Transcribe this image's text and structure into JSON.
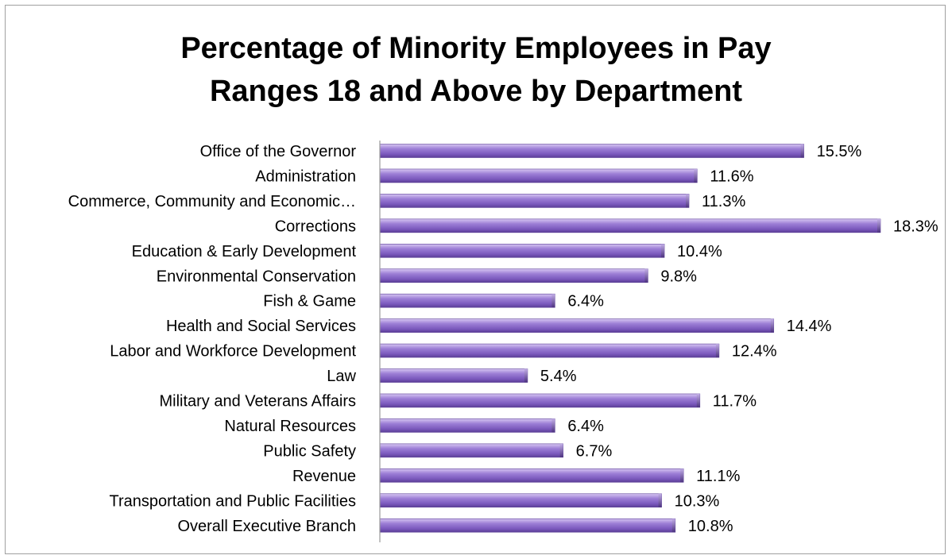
{
  "chart_data": {
    "type": "bar",
    "orientation": "horizontal",
    "title_lines": [
      "Percentage of Minority Employees in Pay",
      "Ranges 18 and Above by Department"
    ],
    "categories": [
      "Office of the Governor",
      "Administration",
      "Commerce, Community and Economic…",
      "Corrections",
      "Education & Early Development",
      "Environmental Conservation",
      "Fish & Game",
      "Health and Social Services",
      "Labor and Workforce Development",
      "Law",
      "Military and Veterans Affairs",
      "Natural Resources",
      "Public Safety",
      "Revenue",
      "Transportation and Public Facilities",
      "Overall Executive Branch"
    ],
    "values": [
      15.5,
      11.6,
      11.3,
      18.3,
      10.4,
      9.8,
      6.4,
      14.4,
      12.4,
      5.4,
      11.7,
      6.4,
      6.7,
      11.1,
      10.3,
      10.8
    ],
    "value_labels": [
      "15.5%",
      "11.6%",
      "11.3%",
      "18.3%",
      "10.4%",
      "9.8%",
      "6.4%",
      "14.4%",
      "12.4%",
      "5.4%",
      "11.7%",
      "6.4%",
      "6.7%",
      "11.1%",
      "10.3%",
      "10.8%"
    ],
    "unit": "%",
    "xlim": [
      0,
      18.3
    ],
    "grid": false,
    "legend": "none",
    "bar_color": "#8a67c8"
  }
}
